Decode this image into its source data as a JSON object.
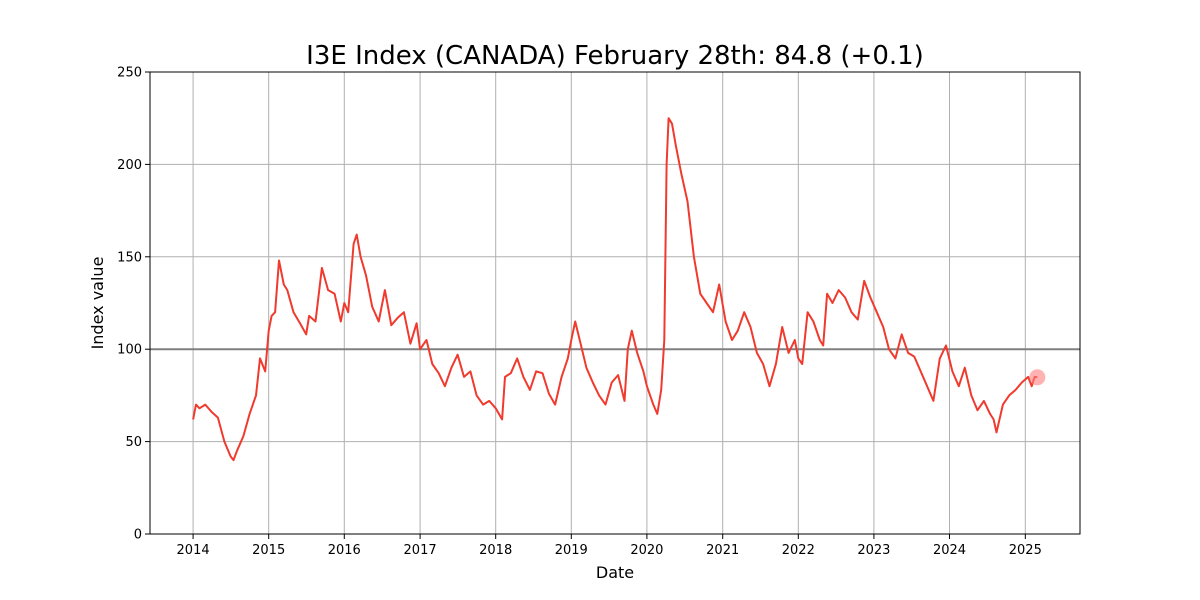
{
  "chart_data": {
    "type": "line",
    "title": "I3E Index (CANADA) February 28th: 84.8 (+0.1)",
    "xlabel": "Date",
    "ylabel": "Index value",
    "xlim": [
      "2013-06-07",
      "2025-09-22"
    ],
    "ylim": [
      0,
      250
    ],
    "x_ticks": [
      "2014",
      "2015",
      "2016",
      "2017",
      "2018",
      "2019",
      "2020",
      "2021",
      "2022",
      "2023",
      "2024",
      "2025"
    ],
    "y_ticks": [
      0,
      50,
      100,
      150,
      200,
      250
    ],
    "grid": true,
    "reference_line": {
      "y": 100,
      "color": "#808080"
    },
    "last_point": {
      "x": "2025-02-28",
      "y": 84.8,
      "color": "#ff7f7f"
    },
    "series": [
      {
        "color": "#f03a2e",
        "points": [
          [
            "2014-01-01",
            62
          ],
          [
            "2014-01-15",
            70
          ],
          [
            "2014-02-01",
            68
          ],
          [
            "2014-03-01",
            70
          ],
          [
            "2014-04-01",
            66
          ],
          [
            "2014-05-01",
            63
          ],
          [
            "2014-06-01",
            50
          ],
          [
            "2014-07-01",
            42
          ],
          [
            "2014-07-15",
            40
          ],
          [
            "2014-08-01",
            45
          ],
          [
            "2014-09-01",
            53
          ],
          [
            "2014-10-01",
            65
          ],
          [
            "2014-11-01",
            75
          ],
          [
            "2014-11-20",
            95
          ],
          [
            "2014-12-15",
            88
          ],
          [
            "2015-01-01",
            110
          ],
          [
            "2015-01-15",
            118
          ],
          [
            "2015-02-01",
            120
          ],
          [
            "2015-02-20",
            148
          ],
          [
            "2015-03-15",
            135
          ],
          [
            "2015-04-01",
            132
          ],
          [
            "2015-05-01",
            120
          ],
          [
            "2015-06-01",
            114
          ],
          [
            "2015-07-01",
            108
          ],
          [
            "2015-07-15",
            118
          ],
          [
            "2015-08-15",
            115
          ],
          [
            "2015-09-15",
            144
          ],
          [
            "2015-10-15",
            132
          ],
          [
            "2015-11-15",
            130
          ],
          [
            "2015-12-15",
            115
          ],
          [
            "2016-01-01",
            125
          ],
          [
            "2016-01-20",
            120
          ],
          [
            "2016-02-15",
            157
          ],
          [
            "2016-03-01",
            162
          ],
          [
            "2016-03-20",
            150
          ],
          [
            "2016-04-15",
            140
          ],
          [
            "2016-05-15",
            123
          ],
          [
            "2016-06-15",
            115
          ],
          [
            "2016-07-15",
            132
          ],
          [
            "2016-08-15",
            113
          ],
          [
            "2016-09-15",
            117
          ],
          [
            "2016-10-15",
            120
          ],
          [
            "2016-11-15",
            103
          ],
          [
            "2016-12-15",
            114
          ],
          [
            "2017-01-01",
            100
          ],
          [
            "2017-02-01",
            105
          ],
          [
            "2017-03-01",
            92
          ],
          [
            "2017-04-01",
            87
          ],
          [
            "2017-05-01",
            80
          ],
          [
            "2017-06-01",
            90
          ],
          [
            "2017-07-01",
            97
          ],
          [
            "2017-08-01",
            85
          ],
          [
            "2017-09-01",
            88
          ],
          [
            "2017-10-01",
            75
          ],
          [
            "2017-11-01",
            70
          ],
          [
            "2017-12-01",
            72
          ],
          [
            "2018-01-01",
            68
          ],
          [
            "2018-02-01",
            62
          ],
          [
            "2018-02-15",
            85
          ],
          [
            "2018-03-15",
            87
          ],
          [
            "2018-04-15",
            95
          ],
          [
            "2018-05-15",
            85
          ],
          [
            "2018-06-15",
            78
          ],
          [
            "2018-07-15",
            88
          ],
          [
            "2018-08-15",
            87
          ],
          [
            "2018-09-15",
            76
          ],
          [
            "2018-10-15",
            70
          ],
          [
            "2018-11-15",
            85
          ],
          [
            "2018-12-15",
            95
          ],
          [
            "2019-01-01",
            105
          ],
          [
            "2019-01-20",
            115
          ],
          [
            "2019-02-15",
            103
          ],
          [
            "2019-03-15",
            90
          ],
          [
            "2019-04-15",
            82
          ],
          [
            "2019-05-15",
            75
          ],
          [
            "2019-06-15",
            70
          ],
          [
            "2019-07-15",
            82
          ],
          [
            "2019-08-15",
            86
          ],
          [
            "2019-09-15",
            72
          ],
          [
            "2019-10-01",
            100
          ],
          [
            "2019-10-20",
            110
          ],
          [
            "2019-11-15",
            98
          ],
          [
            "2019-12-15",
            88
          ],
          [
            "2020-01-01",
            80
          ],
          [
            "2020-02-01",
            70
          ],
          [
            "2020-02-20",
            65
          ],
          [
            "2020-03-10",
            78
          ],
          [
            "2020-03-25",
            105
          ],
          [
            "2020-04-05",
            200
          ],
          [
            "2020-04-15",
            225
          ],
          [
            "2020-05-01",
            222
          ],
          [
            "2020-05-20",
            210
          ],
          [
            "2020-06-15",
            195
          ],
          [
            "2020-07-15",
            180
          ],
          [
            "2020-08-15",
            150
          ],
          [
            "2020-09-15",
            130
          ],
          [
            "2020-10-15",
            125
          ],
          [
            "2020-11-15",
            120
          ],
          [
            "2020-12-15",
            135
          ],
          [
            "2021-01-15",
            115
          ],
          [
            "2021-02-15",
            105
          ],
          [
            "2021-03-15",
            110
          ],
          [
            "2021-04-15",
            120
          ],
          [
            "2021-05-15",
            112
          ],
          [
            "2021-06-15",
            98
          ],
          [
            "2021-07-15",
            92
          ],
          [
            "2021-08-15",
            80
          ],
          [
            "2021-09-15",
            92
          ],
          [
            "2021-10-15",
            112
          ],
          [
            "2021-11-15",
            98
          ],
          [
            "2021-12-15",
            105
          ],
          [
            "2022-01-01",
            95
          ],
          [
            "2022-01-20",
            92
          ],
          [
            "2022-02-15",
            120
          ],
          [
            "2022-03-15",
            115
          ],
          [
            "2022-04-15",
            105
          ],
          [
            "2022-05-01",
            102
          ],
          [
            "2022-05-20",
            130
          ],
          [
            "2022-06-15",
            125
          ],
          [
            "2022-07-15",
            132
          ],
          [
            "2022-08-15",
            128
          ],
          [
            "2022-09-15",
            120
          ],
          [
            "2022-10-15",
            116
          ],
          [
            "2022-11-15",
            137
          ],
          [
            "2022-12-15",
            128
          ],
          [
            "2023-01-15",
            120
          ],
          [
            "2023-02-15",
            112
          ],
          [
            "2023-03-15",
            100
          ],
          [
            "2023-04-15",
            95
          ],
          [
            "2023-05-15",
            108
          ],
          [
            "2023-06-15",
            98
          ],
          [
            "2023-07-15",
            96
          ],
          [
            "2023-08-15",
            88
          ],
          [
            "2023-09-15",
            80
          ],
          [
            "2023-10-15",
            72
          ],
          [
            "2023-11-15",
            95
          ],
          [
            "2023-12-15",
            102
          ],
          [
            "2024-01-15",
            88
          ],
          [
            "2024-02-15",
            80
          ],
          [
            "2024-03-15",
            90
          ],
          [
            "2024-04-15",
            75
          ],
          [
            "2024-05-15",
            67
          ],
          [
            "2024-06-15",
            72
          ],
          [
            "2024-07-15",
            65
          ],
          [
            "2024-08-01",
            62
          ],
          [
            "2024-08-15",
            55
          ],
          [
            "2024-09-15",
            70
          ],
          [
            "2024-10-15",
            75
          ],
          [
            "2024-11-15",
            78
          ],
          [
            "2024-12-15",
            82
          ],
          [
            "2025-01-15",
            85
          ],
          [
            "2025-02-01",
            80
          ],
          [
            "2025-02-15",
            85
          ],
          [
            "2025-02-28",
            84.8
          ]
        ]
      }
    ]
  }
}
